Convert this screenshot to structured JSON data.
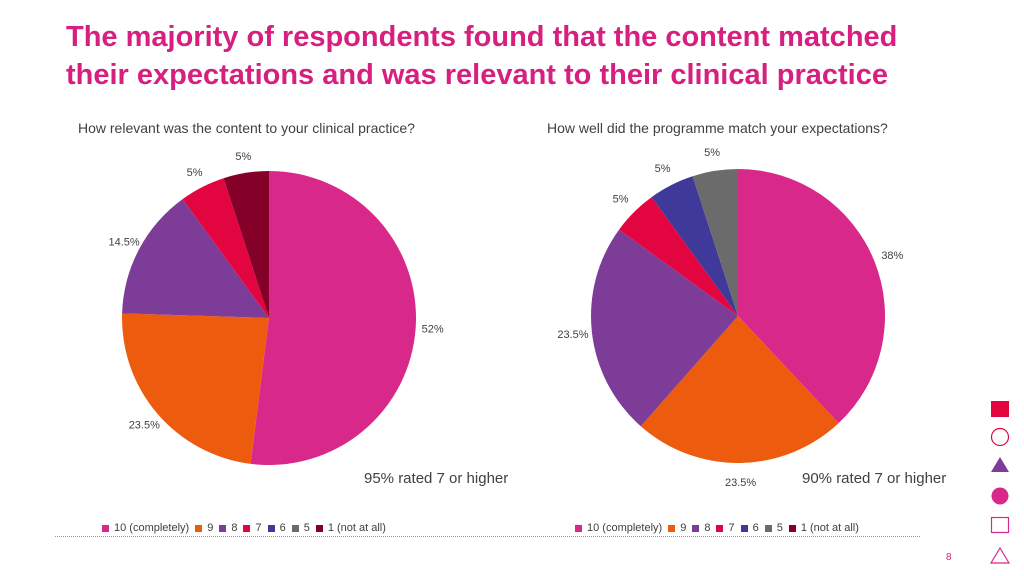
{
  "title": "The majority of respondents found that the content matched\ntheir expectations and was relevant to their clinical practice",
  "colors": {
    "title": "#d61f7f",
    "rating_10": "#d8288a",
    "rating_9": "#ed5b0e",
    "rating_8": "#7e3c99",
    "rating_7": "#e3053f",
    "rating_6": "#3f3a99",
    "rating_5": "#6b6b6b",
    "rating_1": "#850029"
  },
  "chart_data": [
    {
      "type": "pie",
      "title": "How relevant was the content to your clinical practice?",
      "slices": [
        {
          "label": "10 (completely)",
          "value": 52,
          "display": "52%",
          "color": "#d8288a"
        },
        {
          "label": "9",
          "value": 23.5,
          "display": "23.5%",
          "color": "#ed5b0e"
        },
        {
          "label": "8",
          "value": 14.5,
          "display": "14.5%",
          "color": "#7e3c99"
        },
        {
          "label": "7",
          "value": 5,
          "display": "5%",
          "color": "#e3053f"
        },
        {
          "label": "1 (not at all)",
          "value": 5,
          "display": "5%",
          "color": "#850029"
        }
      ],
      "summary": "95% rated 7 or higher"
    },
    {
      "type": "pie",
      "title": "How well did the programme match your expectations?",
      "slices": [
        {
          "label": "10 (completely)",
          "value": 38,
          "display": "38%",
          "color": "#d8288a"
        },
        {
          "label": "9",
          "value": 23.5,
          "display": "23.5%",
          "color": "#ed5b0e"
        },
        {
          "label": "8",
          "value": 23.5,
          "display": "23.5%",
          "color": "#7e3c99"
        },
        {
          "label": "7",
          "value": 5,
          "display": "5%",
          "color": "#e3053f"
        },
        {
          "label": "6",
          "value": 5,
          "display": "5%",
          "color": "#3f3a99"
        },
        {
          "label": "5",
          "value": 5,
          "display": "5%",
          "color": "#6b6b6b"
        }
      ],
      "summary": "90% rated 7 or higher"
    }
  ],
  "legend": [
    {
      "label": "10 (completely)",
      "color": "#d8288a"
    },
    {
      "label": "9",
      "color": "#ed5b0e"
    },
    {
      "label": "8",
      "color": "#7e3c99"
    },
    {
      "label": "7",
      "color": "#e3053f"
    },
    {
      "label": "6",
      "color": "#3f3a99"
    },
    {
      "label": "5",
      "color": "#6b6b6b"
    },
    {
      "label": "1 (not at all)",
      "color": "#850029"
    }
  ],
  "page_number": "8",
  "decorations": [
    {
      "name": "filled-square-icon",
      "color": "#e3053f"
    },
    {
      "name": "outline-circle-icon",
      "color": "#e3053f"
    },
    {
      "name": "filled-triangle-icon",
      "color": "#7e3c99"
    },
    {
      "name": "filled-circle-icon",
      "color": "#d8288a"
    },
    {
      "name": "outline-square-icon",
      "color": "#d8288a"
    },
    {
      "name": "outline-triangle-icon",
      "color": "#d8288a"
    }
  ]
}
